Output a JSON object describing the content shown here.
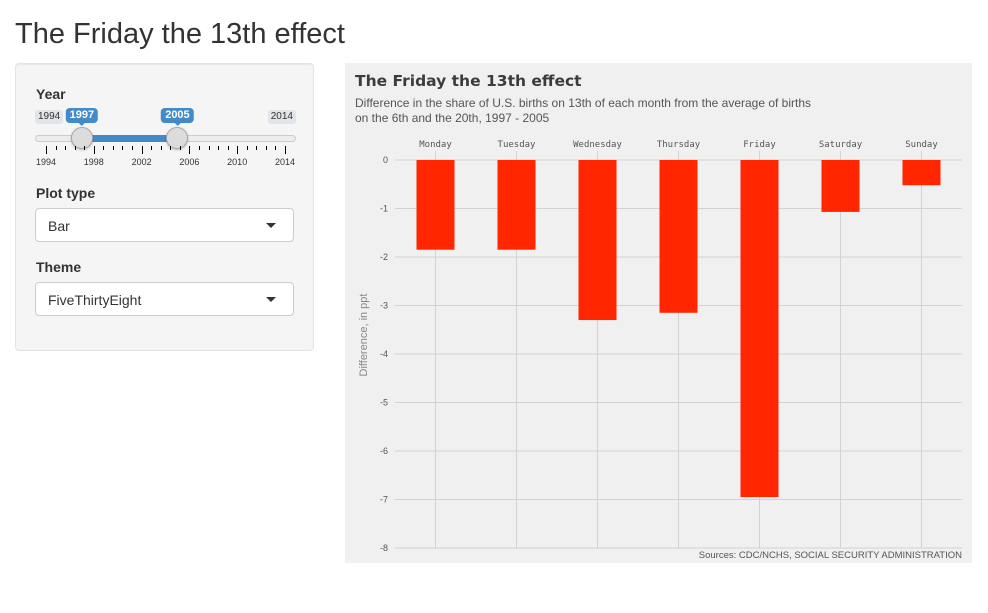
{
  "page": {
    "title": "The Friday the 13th effect"
  },
  "sidebar": {
    "year": {
      "label": "Year",
      "min": 1994,
      "max": 2014,
      "from": 1997,
      "to": 2005,
      "min_label": "1994",
      "max_label": "2014",
      "from_label": "1997",
      "to_label": "2005",
      "grid_labels": [
        "1994",
        "1998",
        "2002",
        "2006",
        "2010",
        "2014"
      ]
    },
    "plot_type": {
      "label": "Plot type",
      "value": "Bar"
    },
    "theme": {
      "label": "Theme",
      "value": "FiveThirtyEight"
    }
  },
  "colors": {
    "accent": "#428bca",
    "bar": "#ff2600",
    "panel": "#f0f0f0",
    "grid": "#d2d2d2"
  },
  "chart_data": {
    "type": "bar",
    "title": "The Friday the 13th effect",
    "subtitle_lines": [
      "Difference in the share of U.S. births on 13th of each month from the average of births",
      "on the 6th and the 20th, 1997 - 2005"
    ],
    "categories": [
      "Monday",
      "Tuesday",
      "Wednesday",
      "Thursday",
      "Friday",
      "Saturday",
      "Sunday"
    ],
    "values": [
      -1.85,
      -1.85,
      -3.3,
      -3.15,
      -6.95,
      -1.07,
      -0.52
    ],
    "ylabel": "Difference, in ppt",
    "xlabel": "",
    "ylim": [
      -8,
      0
    ],
    "yticks": [
      "0",
      "-1",
      "-2",
      "-3",
      "-4",
      "-5",
      "-6",
      "-7",
      "-8"
    ],
    "source": "Sources: CDC/NCHS, SOCIAL SECURITY ADMINISTRATION",
    "grid": true,
    "legend": "none"
  }
}
